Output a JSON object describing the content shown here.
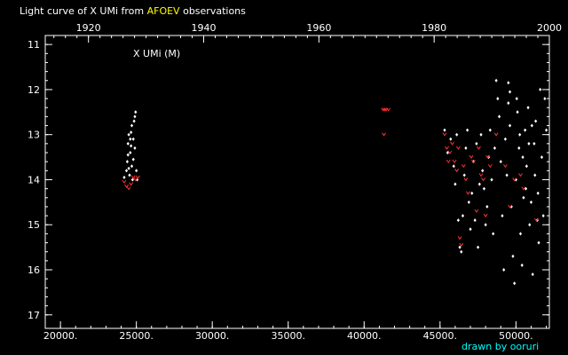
{
  "chart_data": {
    "type": "scatter",
    "title_pre": "Light curve of X UMi from ",
    "title_highlight": "AFOEV",
    "title_post": " observations",
    "series_label": "X UMi (M)",
    "credit": "drawn by ooruri",
    "colors": {
      "background": "#000000",
      "axes": "#ffffff",
      "text": "#ffffff",
      "highlight": "#ffff00",
      "credit": "#00ffff",
      "points": "#ffffff",
      "upper_limits": "#ff3030"
    },
    "x_jd_range": [
      19000,
      52200
    ],
    "x_year_range": [
      1912.5,
      2000
    ],
    "y_mag_range": [
      10.8,
      17.3
    ],
    "y_inverted": true,
    "x_jd_ticks": [
      20000,
      25000,
      30000,
      35000,
      40000,
      45000,
      50000
    ],
    "x_jd_tick_labels": [
      "20000.",
      "25000.",
      "30000.",
      "35000.",
      "40000.",
      "45000.",
      "50000."
    ],
    "x_year_ticks": [
      1920,
      1940,
      1960,
      1980,
      2000
    ],
    "x_year_tick_labels": [
      "1920",
      "1940",
      "1960",
      "1980",
      "2000"
    ],
    "y_ticks": [
      11,
      12,
      13,
      14,
      15,
      16,
      17
    ],
    "y_tick_labels": [
      "11",
      "12",
      "13",
      "14",
      "15",
      "16",
      "17"
    ],
    "observations": [
      [
        24200,
        13.95
      ],
      [
        24350,
        13.8
      ],
      [
        24400,
        13.6
      ],
      [
        24450,
        13.2
      ],
      [
        24500,
        13.0
      ],
      [
        24550,
        13.9
      ],
      [
        24600,
        13.4
      ],
      [
        24650,
        12.95
      ],
      [
        24700,
        13.7
      ],
      [
        24750,
        14.0
      ],
      [
        24800,
        13.1
      ],
      [
        24850,
        12.7
      ],
      [
        24900,
        13.3
      ],
      [
        24950,
        12.5
      ],
      [
        25000,
        13.8
      ],
      [
        25050,
        14.0
      ],
      [
        24450,
        13.45
      ],
      [
        24600,
        13.1
      ],
      [
        24700,
        12.8
      ],
      [
        24800,
        13.55
      ],
      [
        24900,
        12.6
      ],
      [
        24500,
        13.75
      ],
      [
        24650,
        13.25
      ],
      [
        45300,
        12.9
      ],
      [
        45500,
        13.4
      ],
      [
        45700,
        13.1
      ],
      [
        45900,
        13.7
      ],
      [
        46000,
        14.1
      ],
      [
        46100,
        13.0
      ],
      [
        46200,
        14.9
      ],
      [
        46300,
        15.5
      ],
      [
        46400,
        15.6
      ],
      [
        46500,
        14.8
      ],
      [
        46600,
        13.9
      ],
      [
        46700,
        13.3
      ],
      [
        46800,
        12.9
      ],
      [
        46900,
        14.5
      ],
      [
        47000,
        15.1
      ],
      [
        47100,
        14.3
      ],
      [
        47200,
        13.6
      ],
      [
        47300,
        14.9
      ],
      [
        47400,
        13.2
      ],
      [
        47500,
        15.5
      ],
      [
        47600,
        14.1
      ],
      [
        47700,
        13.0
      ],
      [
        47800,
        13.8
      ],
      [
        47900,
        14.2
      ],
      [
        48000,
        15.0
      ],
      [
        48100,
        14.6
      ],
      [
        48200,
        13.5
      ],
      [
        48300,
        12.9
      ],
      [
        48400,
        14.0
      ],
      [
        48500,
        15.2
      ],
      [
        48600,
        13.3
      ],
      [
        48700,
        11.8
      ],
      [
        48800,
        12.2
      ],
      [
        48900,
        12.6
      ],
      [
        49000,
        13.6
      ],
      [
        49100,
        14.8
      ],
      [
        49200,
        16.0
      ],
      [
        49300,
        13.1
      ],
      [
        49400,
        13.9
      ],
      [
        49500,
        12.3
      ],
      [
        49600,
        12.8
      ],
      [
        49700,
        14.6
      ],
      [
        49800,
        15.7
      ],
      [
        49900,
        16.3
      ],
      [
        50000,
        14.0
      ],
      [
        50100,
        12.5
      ],
      [
        50200,
        13.3
      ],
      [
        50300,
        15.2
      ],
      [
        50400,
        15.9
      ],
      [
        50500,
        14.4
      ],
      [
        50600,
        12.9
      ],
      [
        50700,
        13.7
      ],
      [
        50800,
        12.4
      ],
      [
        50900,
        15.0
      ],
      [
        51000,
        14.5
      ],
      [
        51100,
        16.1
      ],
      [
        51200,
        13.2
      ],
      [
        51300,
        12.7
      ],
      [
        51400,
        14.9
      ],
      [
        51500,
        15.4
      ],
      [
        51600,
        12.0
      ],
      [
        51700,
        13.5
      ],
      [
        51800,
        14.8
      ],
      [
        51900,
        12.2
      ],
      [
        52000,
        12.9
      ],
      [
        49500,
        11.85
      ],
      [
        49600,
        12.05
      ],
      [
        50050,
        12.2
      ],
      [
        50250,
        13.0
      ],
      [
        50450,
        13.5
      ],
      [
        50650,
        14.2
      ],
      [
        50850,
        13.2
      ],
      [
        51050,
        12.8
      ],
      [
        51250,
        13.9
      ],
      [
        51450,
        14.3
      ]
    ],
    "upper_limits": [
      [
        24200,
        14.05
      ],
      [
        24350,
        14.15
      ],
      [
        24500,
        14.2
      ],
      [
        24650,
        14.1
      ],
      [
        24800,
        13.95
      ],
      [
        24950,
        14.0
      ],
      [
        25100,
        13.95
      ],
      [
        41250,
        12.45
      ],
      [
        41350,
        12.45
      ],
      [
        41450,
        12.45
      ],
      [
        41600,
        12.45
      ],
      [
        41300,
        13.0
      ],
      [
        45300,
        13.0
      ],
      [
        45450,
        13.3
      ],
      [
        45550,
        13.6
      ],
      [
        45650,
        13.4
      ],
      [
        45800,
        13.2
      ],
      [
        45950,
        13.6
      ],
      [
        46100,
        13.8
      ],
      [
        46200,
        13.3
      ],
      [
        46300,
        15.3
      ],
      [
        46400,
        15.45
      ],
      [
        46550,
        13.7
      ],
      [
        46700,
        14.0
      ],
      [
        46850,
        14.3
      ],
      [
        47050,
        13.5
      ],
      [
        47200,
        13.6
      ],
      [
        47400,
        14.7
      ],
      [
        47550,
        13.3
      ],
      [
        47700,
        13.9
      ],
      [
        47850,
        14.0
      ],
      [
        48000,
        14.8
      ],
      [
        48150,
        13.5
      ],
      [
        48300,
        13.7
      ],
      [
        48700,
        13.0
      ],
      [
        49300,
        13.7
      ],
      [
        49600,
        14.6
      ],
      [
        49900,
        14.0
      ],
      [
        50300,
        13.9
      ],
      [
        50500,
        14.2
      ],
      [
        51350,
        14.9
      ]
    ]
  }
}
